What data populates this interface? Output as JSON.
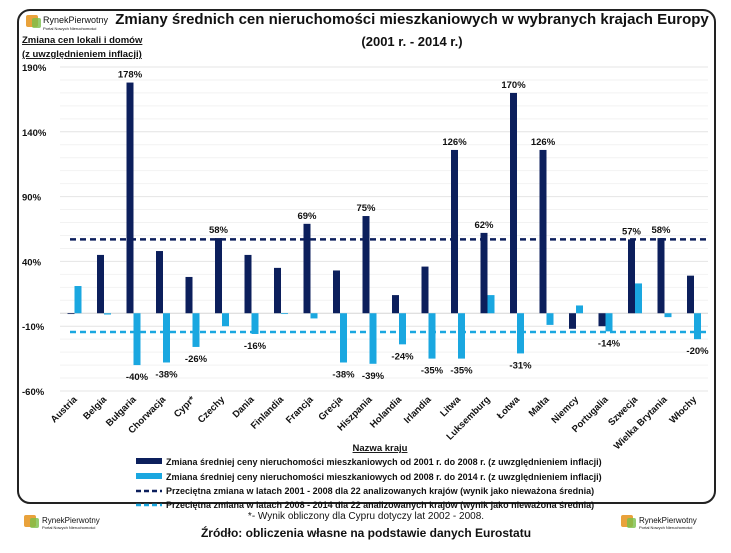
{
  "logo": {
    "name": "RynekPierwotny",
    "tagline": "Portal Nowych Nieruchomości"
  },
  "chart_data": {
    "type": "bar",
    "title": "Zmiany średnich cen nieruchomości mieszkaniowych w wybranych krajach Europy",
    "subtitle": "(2001 r. - 2014 r.)",
    "ylabel_line1": "Zmiana cen lokali i domów",
    "ylabel_line2": "(z uwzględnieniem inflacji)",
    "xlabel": "Nazwa kraju",
    "ylim": [
      -60,
      190
    ],
    "yticks": [
      190,
      140,
      90,
      40,
      -10,
      -60
    ],
    "ytick_labels": [
      "190%",
      "140%",
      "90%",
      "40%",
      "-10%",
      "-60%"
    ],
    "grid": true,
    "legend_position": "bottom",
    "categories": [
      "Austria",
      "Belgia",
      "Bułgaria",
      "Chorwacja",
      "Cypr*",
      "Czechy",
      "Dania",
      "Finlandia",
      "Francja",
      "Grecja",
      "Hiszpania",
      "Holandia",
      "Irlandia",
      "Litwa",
      "Luksemburg",
      "Łotwa",
      "Malta",
      "Niemcy",
      "Portugalia",
      "Szwecja",
      "Wielka Brytania",
      "Włochy"
    ],
    "series": [
      {
        "name": "Zmiana średniej ceny nieruchomości mieszkaniowych od 2001 r. do 2008 r. (z uwzględnieniem inflacji)",
        "color": "#0c1f5c",
        "values": [
          0,
          45,
          178,
          48,
          28,
          58,
          45,
          35,
          69,
          33,
          75,
          14,
          36,
          126,
          62,
          170,
          126,
          -12,
          -10,
          57,
          58,
          29
        ],
        "data_labels": {
          "2": "178%",
          "5": "58%",
          "8": "69%",
          "10": "75%",
          "13": "126%",
          "14": "62%",
          "15": "170%",
          "16": "126%",
          "19": "57%",
          "20": "58%"
        }
      },
      {
        "name": "Zmiana średniej ceny nieruchomości mieszkaniowych od 2008 r. do 2014 r. (z uwzględnieniem inflacji)",
        "color": "#1aa7e0",
        "values": [
          21,
          -1,
          -40,
          -38,
          -26,
          -10,
          -16,
          0,
          -4,
          -38,
          -39,
          -24,
          -35,
          -35,
          14,
          -31,
          -9,
          6,
          -14,
          23,
          -3,
          -20
        ],
        "data_labels": {
          "2": "-40%",
          "3": "-38%",
          "4": "-26%",
          "6": "-16%",
          "9": "-38%",
          "10": "-39%",
          "11": "-24%",
          "12": "-35%",
          "13": "-35%",
          "15": "-31%",
          "18": "-14%",
          "21": "-20%"
        }
      }
    ],
    "reference_lines": [
      {
        "name": "Przeciętna zmiana w latach 2001 - 2008 dla 22 analizowanych krajów (wynik jako nieważona średnia)",
        "value": 57,
        "color": "#0c1f5c",
        "style": "dashed"
      },
      {
        "name": "Przeciętna zmiana w latach 2008 - 2014 dla 22 analizowanych krajów (wynik jako nieważona średnia)",
        "value": -14.5,
        "color": "#1aa7e0",
        "style": "dashed"
      }
    ]
  },
  "footnote": "*- Wynik obliczony dla Cypru dotyczy lat 2002 - 2008.",
  "source": "Źródło: obliczenia własne na podstawie danych Eurostatu"
}
